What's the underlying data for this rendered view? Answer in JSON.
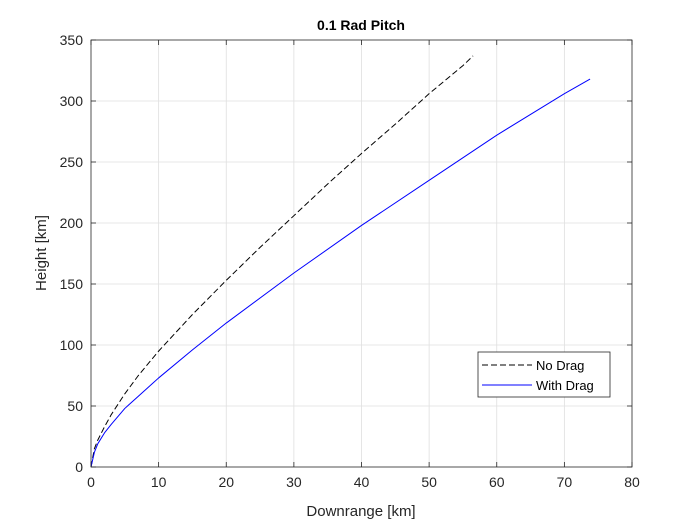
{
  "chart_data": {
    "type": "line",
    "title": "0.1 Rad Pitch",
    "xlabel": "Downrange [km]",
    "ylabel": "Height [km]",
    "xlim": [
      0,
      80
    ],
    "ylim": [
      0,
      350
    ],
    "xticks": [
      0,
      10,
      20,
      30,
      40,
      50,
      60,
      70,
      80
    ],
    "yticks": [
      0,
      50,
      100,
      150,
      200,
      250,
      300,
      350
    ],
    "grid": true,
    "legend_position": "lower-right",
    "series": [
      {
        "name": "No Drag",
        "color": "#000000",
        "style": "dashed",
        "x": [
          0,
          0.5,
          1,
          2,
          3,
          5,
          7,
          10,
          15,
          20,
          25,
          30,
          35,
          40,
          45,
          50,
          55,
          56.5
        ],
        "y": [
          0,
          15,
          22,
          33,
          43,
          60,
          75,
          95,
          125,
          153,
          180,
          206,
          232,
          257,
          281,
          306,
          329,
          337
        ]
      },
      {
        "name": "With Drag",
        "color": "#0000ff",
        "style": "solid",
        "x": [
          0,
          0.5,
          1,
          2,
          3,
          5,
          7,
          10,
          15,
          20,
          30,
          40,
          50,
          60,
          70,
          73.8
        ],
        "y": [
          0,
          12,
          19,
          28,
          35,
          48,
          58,
          73,
          96,
          118,
          159,
          198,
          235,
          272,
          306,
          318
        ]
      }
    ]
  }
}
